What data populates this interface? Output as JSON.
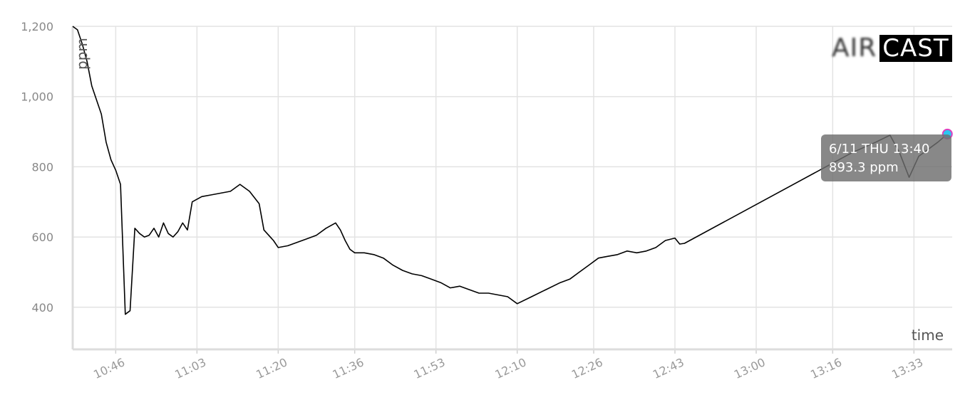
{
  "chart_data": {
    "type": "line",
    "ylabel": "ppm",
    "xlabel": "time",
    "ylim": [
      280,
      1200
    ],
    "yticks": [
      400,
      600,
      800,
      1000,
      1200
    ],
    "ytick_labels": [
      "400",
      "600",
      "800",
      "1,000",
      "1,200"
    ],
    "xlim": [
      "10:37",
      "13:41"
    ],
    "xticks": [
      "10:46",
      "11:03",
      "11:20",
      "11:36",
      "11:53",
      "12:10",
      "12:26",
      "12:43",
      "13:00",
      "13:16",
      "13:33"
    ],
    "grid": true,
    "line_color": "#000000",
    "series": [
      {
        "x": [
          "10:37",
          "10:38",
          "10:39",
          "10:40",
          "10:41",
          "10:42",
          "10:43",
          "10:44",
          "10:45",
          "10:46",
          "10:47",
          "10:48",
          "10:49",
          "10:50",
          "10:51",
          "10:52",
          "10:53",
          "10:54",
          "10:55",
          "10:56",
          "10:57",
          "10:58",
          "10:59",
          "11:00",
          "11:01",
          "11:02",
          "11:04",
          "11:06",
          "11:08",
          "11:10",
          "11:12",
          "11:14",
          "11:16",
          "11:17",
          "11:19",
          "11:20",
          "11:22",
          "11:24",
          "11:26",
          "11:28",
          "11:30",
          "11:32",
          "11:33",
          "11:34",
          "11:35",
          "11:36",
          "11:38",
          "11:40",
          "11:42",
          "11:44",
          "11:46",
          "11:48",
          "11:50",
          "11:52",
          "11:54",
          "11:56",
          "11:58",
          "12:00",
          "12:02",
          "12:04",
          "12:06",
          "12:08",
          "12:10",
          "12:13",
          "12:16",
          "12:19",
          "12:21",
          "12:23",
          "12:25",
          "12:27",
          "12:29",
          "12:31",
          "12:33",
          "12:35",
          "12:37",
          "12:39",
          "12:41",
          "12:43",
          "12:44",
          "12:45",
          "13:20",
          "13:25",
          "13:28",
          "13:30",
          "13:32",
          "13:34",
          "13:36",
          "13:38",
          "13:40"
        ],
        "values": [
          1200,
          1190,
          1150,
          1100,
          1030,
          990,
          950,
          870,
          820,
          790,
          750,
          380,
          390,
          625,
          610,
          600,
          605,
          625,
          600,
          640,
          610,
          600,
          615,
          640,
          620,
          700,
          715,
          720,
          725,
          730,
          750,
          730,
          695,
          620,
          590,
          570,
          575,
          585,
          595,
          605,
          625,
          640,
          620,
          590,
          565,
          555,
          555,
          550,
          540,
          520,
          505,
          495,
          490,
          480,
          470,
          455,
          460,
          450,
          440,
          440,
          435,
          430,
          410,
          430,
          450,
          470,
          480,
          500,
          520,
          540,
          545,
          550,
          560,
          555,
          560,
          570,
          590,
          597,
          580,
          582,
          840,
          870,
          890,
          840,
          770,
          830,
          850,
          870,
          893.3
        ]
      }
    ],
    "highlight_point": {
      "x": "13:40",
      "y": 893.3,
      "fill": "#2ec4f0",
      "stroke": "#e040c0"
    },
    "tooltip": {
      "line1": "6/11 THU 13:40",
      "line2": "893.3 ppm"
    }
  },
  "logo": {
    "part1": "AIR",
    "part2": "CAST"
  }
}
